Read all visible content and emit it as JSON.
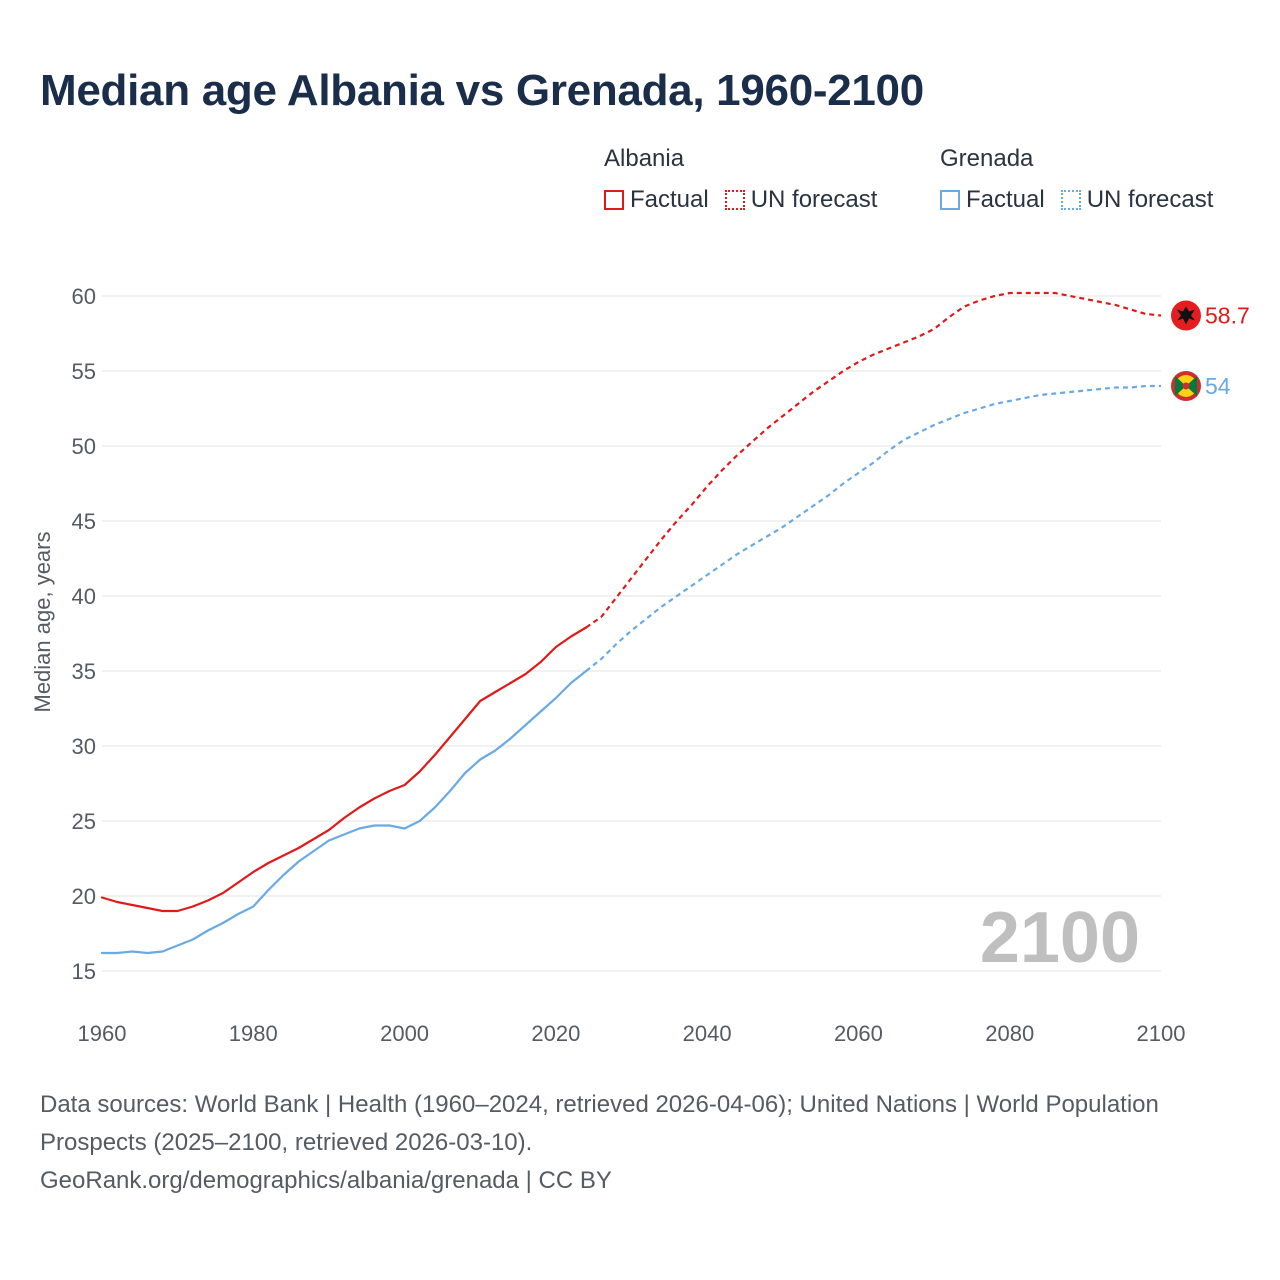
{
  "title": "Median age Albania vs Grenada, 1960-2100",
  "legend": {
    "groups": [
      {
        "name": "Albania",
        "color": "#e01a1a",
        "items": [
          {
            "label": "Factual",
            "style": "solid"
          },
          {
            "label": "UN forecast",
            "style": "dotted"
          }
        ]
      },
      {
        "name": "Grenada",
        "color": "#6aaae4",
        "items": [
          {
            "label": "Factual",
            "style": "solid"
          },
          {
            "label": "UN forecast",
            "style": "dotted"
          }
        ]
      }
    ]
  },
  "footer": {
    "sources": "Data sources: World Bank | Health (1960–2024, retrieved 2026-04-06); United Nations | World Population Prospects (2025–2100, retrieved 2026-03-10).",
    "link": "GeoRank.org/demographics/albania/grenada | CC BY"
  },
  "chart_data": {
    "type": "line",
    "title": "Median age Albania vs Grenada, 1960-2100",
    "xlabel": "",
    "ylabel": "Median age, years",
    "xlim": [
      1960,
      2100
    ],
    "ylim": [
      15,
      60
    ],
    "x_ticks": [
      1960,
      1980,
      2000,
      2020,
      2040,
      2060,
      2080,
      2100
    ],
    "y_ticks": [
      15,
      20,
      25,
      30,
      35,
      40,
      45,
      50,
      55,
      60
    ],
    "grid": true,
    "year_watermark": "2100",
    "factual_until": 2024,
    "series": [
      {
        "name": "Albania",
        "color": "#e01a1a",
        "end_label": "58.7",
        "flag": "albania-flag",
        "points": [
          [
            1960,
            19.9
          ],
          [
            1962,
            19.6
          ],
          [
            1964,
            19.4
          ],
          [
            1966,
            19.2
          ],
          [
            1968,
            19.0
          ],
          [
            1970,
            19.0
          ],
          [
            1972,
            19.3
          ],
          [
            1974,
            19.7
          ],
          [
            1976,
            20.2
          ],
          [
            1978,
            20.9
          ],
          [
            1980,
            21.6
          ],
          [
            1982,
            22.2
          ],
          [
            1984,
            22.7
          ],
          [
            1986,
            23.2
          ],
          [
            1988,
            23.8
          ],
          [
            1990,
            24.4
          ],
          [
            1992,
            25.2
          ],
          [
            1994,
            25.9
          ],
          [
            1996,
            26.5
          ],
          [
            1998,
            27.0
          ],
          [
            2000,
            27.4
          ],
          [
            2002,
            28.3
          ],
          [
            2004,
            29.4
          ],
          [
            2006,
            30.6
          ],
          [
            2008,
            31.8
          ],
          [
            2010,
            33.0
          ],
          [
            2012,
            33.6
          ],
          [
            2014,
            34.2
          ],
          [
            2016,
            34.8
          ],
          [
            2018,
            35.6
          ],
          [
            2020,
            36.6
          ],
          [
            2022,
            37.3
          ],
          [
            2024,
            37.9
          ],
          [
            2026,
            38.6
          ],
          [
            2028,
            39.9
          ],
          [
            2030,
            41.2
          ],
          [
            2032,
            42.5
          ],
          [
            2034,
            43.8
          ],
          [
            2036,
            45.0
          ],
          [
            2038,
            46.1
          ],
          [
            2040,
            47.3
          ],
          [
            2042,
            48.4
          ],
          [
            2044,
            49.4
          ],
          [
            2046,
            50.3
          ],
          [
            2048,
            51.2
          ],
          [
            2050,
            52.0
          ],
          [
            2052,
            52.8
          ],
          [
            2054,
            53.6
          ],
          [
            2056,
            54.3
          ],
          [
            2058,
            55.0
          ],
          [
            2060,
            55.6
          ],
          [
            2062,
            56.1
          ],
          [
            2064,
            56.5
          ],
          [
            2066,
            56.9
          ],
          [
            2068,
            57.3
          ],
          [
            2070,
            57.8
          ],
          [
            2072,
            58.6
          ],
          [
            2074,
            59.3
          ],
          [
            2076,
            59.7
          ],
          [
            2078,
            60.0
          ],
          [
            2080,
            60.2
          ],
          [
            2082,
            60.2
          ],
          [
            2084,
            60.2
          ],
          [
            2086,
            60.2
          ],
          [
            2088,
            60.0
          ],
          [
            2090,
            59.8
          ],
          [
            2092,
            59.6
          ],
          [
            2094,
            59.4
          ],
          [
            2096,
            59.1
          ],
          [
            2098,
            58.8
          ],
          [
            2100,
            58.7
          ]
        ]
      },
      {
        "name": "Grenada",
        "color": "#6aaae4",
        "end_label": "54",
        "flag": "grenada-flag",
        "points": [
          [
            1960,
            16.2
          ],
          [
            1962,
            16.2
          ],
          [
            1964,
            16.3
          ],
          [
            1966,
            16.2
          ],
          [
            1968,
            16.3
          ],
          [
            1970,
            16.7
          ],
          [
            1972,
            17.1
          ],
          [
            1974,
            17.7
          ],
          [
            1976,
            18.2
          ],
          [
            1978,
            18.8
          ],
          [
            1980,
            19.3
          ],
          [
            1982,
            20.4
          ],
          [
            1984,
            21.4
          ],
          [
            1986,
            22.3
          ],
          [
            1988,
            23.0
          ],
          [
            1990,
            23.7
          ],
          [
            1992,
            24.1
          ],
          [
            1994,
            24.5
          ],
          [
            1996,
            24.7
          ],
          [
            1998,
            24.7
          ],
          [
            2000,
            24.5
          ],
          [
            2002,
            25.0
          ],
          [
            2004,
            25.9
          ],
          [
            2006,
            27.0
          ],
          [
            2008,
            28.2
          ],
          [
            2010,
            29.1
          ],
          [
            2012,
            29.7
          ],
          [
            2014,
            30.5
          ],
          [
            2016,
            31.4
          ],
          [
            2018,
            32.3
          ],
          [
            2020,
            33.2
          ],
          [
            2022,
            34.2
          ],
          [
            2024,
            35.0
          ],
          [
            2026,
            35.8
          ],
          [
            2028,
            36.8
          ],
          [
            2030,
            37.7
          ],
          [
            2032,
            38.5
          ],
          [
            2034,
            39.3
          ],
          [
            2036,
            40.0
          ],
          [
            2038,
            40.7
          ],
          [
            2040,
            41.4
          ],
          [
            2042,
            42.1
          ],
          [
            2044,
            42.8
          ],
          [
            2046,
            43.4
          ],
          [
            2048,
            44.0
          ],
          [
            2050,
            44.6
          ],
          [
            2052,
            45.3
          ],
          [
            2054,
            46.0
          ],
          [
            2056,
            46.7
          ],
          [
            2058,
            47.5
          ],
          [
            2060,
            48.2
          ],
          [
            2062,
            48.9
          ],
          [
            2064,
            49.7
          ],
          [
            2066,
            50.4
          ],
          [
            2068,
            50.9
          ],
          [
            2070,
            51.4
          ],
          [
            2072,
            51.8
          ],
          [
            2074,
            52.2
          ],
          [
            2076,
            52.5
          ],
          [
            2078,
            52.8
          ],
          [
            2080,
            53.0
          ],
          [
            2082,
            53.2
          ],
          [
            2084,
            53.4
          ],
          [
            2086,
            53.5
          ],
          [
            2088,
            53.6
          ],
          [
            2090,
            53.7
          ],
          [
            2092,
            53.8
          ],
          [
            2094,
            53.9
          ],
          [
            2096,
            53.9
          ],
          [
            2098,
            54.0
          ],
          [
            2100,
            54.0
          ]
        ]
      }
    ]
  }
}
